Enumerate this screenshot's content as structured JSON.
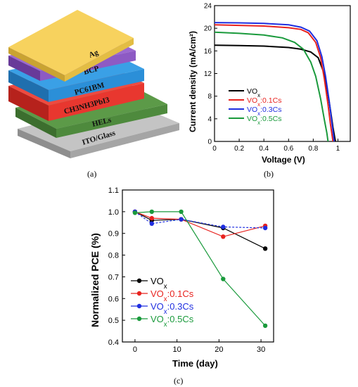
{
  "figure": {
    "panel_a_caption": "(a)",
    "panel_b_caption": "(b)",
    "panel_c_caption": "(c)"
  },
  "device_stack": {
    "layers": [
      {
        "label": "Ag",
        "color": "#f4cf5c"
      },
      {
        "label": "BCP",
        "color": "#8d5ac4"
      },
      {
        "label": "PC61BM",
        "color": "#2b8fd8"
      },
      {
        "label": "CH3NH3PbI3",
        "color": "#e8372f"
      },
      {
        "label": "HELs",
        "color": "#4e8a3d"
      },
      {
        "label": "ITO/Glass",
        "color": "#a9a9a9"
      }
    ]
  },
  "chart_data": [
    {
      "type": "line",
      "panel": "b",
      "xlabel": "Voltage (V)",
      "ylabel": "Current density (mA/cm²)",
      "xlim": [
        0,
        1.1
      ],
      "ylim": [
        0,
        24
      ],
      "xticks": [
        "0",
        "0.2",
        "0.4",
        "0.6",
        "0.8",
        "1"
      ],
      "yticks": [
        "0",
        "4",
        "8",
        "12",
        "16",
        "20",
        "24"
      ],
      "legend_position": "bottom-left",
      "series": [
        {
          "name": "VOx",
          "color": "#000000",
          "x": [
            0,
            0.2,
            0.4,
            0.6,
            0.7,
            0.78,
            0.84,
            0.88,
            0.91,
            0.94,
            0.96,
            0.98
          ],
          "y": [
            17.0,
            16.95,
            16.85,
            16.6,
            16.3,
            15.8,
            14.8,
            12.5,
            9.5,
            5.5,
            2.5,
            0
          ]
        },
        {
          "name": "VOx:0.1Cs",
          "color": "#e8231f",
          "x": [
            0,
            0.2,
            0.4,
            0.6,
            0.7,
            0.76,
            0.82,
            0.86,
            0.89,
            0.92,
            0.94,
            0.96
          ],
          "y": [
            20.6,
            20.5,
            20.4,
            20.1,
            19.8,
            19.2,
            17.5,
            14.8,
            11.0,
            6.5,
            3.0,
            0
          ]
        },
        {
          "name": "VOx:0.3Cs",
          "color": "#1f2ee0",
          "x": [
            0,
            0.2,
            0.4,
            0.6,
            0.7,
            0.77,
            0.83,
            0.87,
            0.9,
            0.93,
            0.95,
            0.97
          ],
          "y": [
            21.0,
            20.95,
            20.85,
            20.6,
            20.2,
            19.5,
            17.8,
            15.0,
            11.5,
            7.0,
            3.5,
            0
          ]
        },
        {
          "name": "VOx:0.5Cs",
          "color": "#1a9a3c",
          "x": [
            0,
            0.2,
            0.4,
            0.55,
            0.65,
            0.72,
            0.78,
            0.82,
            0.86,
            0.89,
            0.91,
            0.92
          ],
          "y": [
            19.3,
            19.1,
            18.8,
            18.3,
            17.5,
            16.3,
            14.0,
            11.5,
            7.5,
            3.8,
            1.5,
            0
          ]
        }
      ]
    },
    {
      "type": "line",
      "panel": "c",
      "xlabel": "Time (day)",
      "ylabel": "Normalized PCE (%)",
      "xlim": [
        -3,
        33
      ],
      "ylim": [
        0.4,
        1.1
      ],
      "xticks": [
        "0",
        "10",
        "20",
        "30"
      ],
      "yticks": [
        "0.4",
        "0.5",
        "0.6",
        "0.7",
        "0.8",
        "0.9",
        "1.0",
        "1.1"
      ],
      "legend_position": "bottom-left",
      "series": [
        {
          "name": "VOx",
          "color": "#000000",
          "style": "solid",
          "x": [
            0,
            4,
            11,
            21,
            31
          ],
          "y": [
            1.0,
            0.96,
            0.965,
            0.925,
            0.83
          ]
        },
        {
          "name": "VOx:0.1Cs",
          "color": "#e8231f",
          "style": "solid",
          "x": [
            0,
            4,
            11,
            21,
            31
          ],
          "y": [
            1.0,
            0.97,
            0.965,
            0.885,
            0.935
          ]
        },
        {
          "name": "VOx:0.3Cs",
          "color": "#1f2ee0",
          "style": "dashed",
          "x": [
            0,
            4,
            11,
            21,
            31
          ],
          "y": [
            1.0,
            0.945,
            0.965,
            0.93,
            0.925
          ]
        },
        {
          "name": "VOx:0.5Cs",
          "color": "#1a9a3c",
          "style": "solid",
          "x": [
            0,
            4,
            11,
            21,
            31
          ],
          "y": [
            0.995,
            1.0,
            1.0,
            0.69,
            0.475
          ]
        }
      ]
    }
  ]
}
